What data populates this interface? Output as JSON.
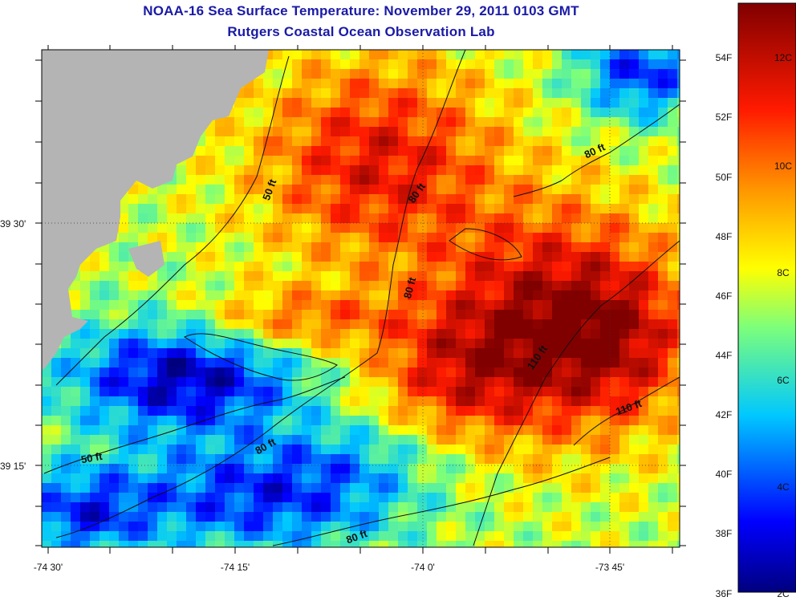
{
  "title": {
    "line1": "NOAA-16 Sea Surface Temperature:  November 29, 2011 0103 GMT",
    "line2": "Rutgers Coastal Ocean Observation Lab"
  },
  "axes": {
    "lon_ticks": [
      "-74 30'",
      "-74 15'",
      "-74 0'",
      "-73 45'"
    ],
    "lat_ticks": [
      "39 30'",
      "39 15'"
    ]
  },
  "colorbar": {
    "fahrenheit_labels": [
      "54F",
      "52F",
      "50F",
      "48F",
      "46F",
      "44F",
      "42F",
      "40F",
      "38F",
      "36F"
    ],
    "celsius_labels": [
      "12C",
      "10C",
      "8C",
      "6C",
      "4C",
      "2C"
    ]
  },
  "contours": {
    "labels": [
      "50 ft",
      "50 ft",
      "80 ft",
      "80 ft",
      "80 ft",
      "80 ft",
      "80 ft",
      "110 ft",
      "110 ft"
    ]
  },
  "colors": {
    "title": "#1a1aa6",
    "land": "#b4b4b4",
    "contour": "#111111"
  }
}
